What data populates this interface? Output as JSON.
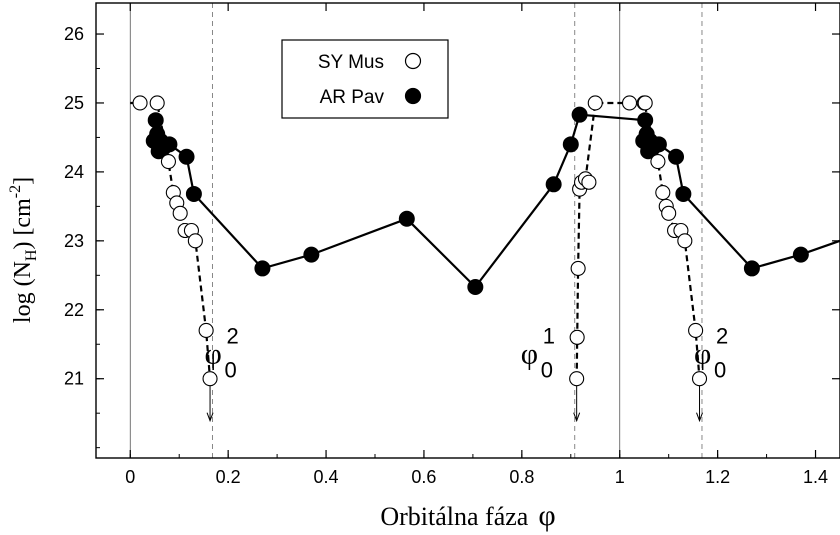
{
  "chart_data": {
    "type": "scatter",
    "xlabel": "Orbitálna fáza",
    "xlabel_symbol": "φ",
    "ylabel": "log (N",
    "ylabel_sub": "H",
    "ylabel_unit": ")   [cm",
    "ylabel_sup": "-2",
    "ylabel_close": "]",
    "xlim": [
      -0.07,
      1.45
    ],
    "ylim": [
      19.85,
      26.45
    ],
    "xticks": [
      0,
      0.2,
      0.4,
      0.6,
      0.8,
      1,
      1.2,
      1.4
    ],
    "xtick_labels": [
      "0",
      "0.2",
      "0.4",
      "0.6",
      "0.8",
      "1",
      "1.2",
      "1.4"
    ],
    "yticks": [
      21,
      22,
      23,
      24,
      25,
      26
    ],
    "ytick_labels": [
      "21",
      "22",
      "23",
      "24",
      "25",
      "26"
    ],
    "solid_vlines": [
      0,
      1
    ],
    "dashed_vlines": [
      0.168,
      0.908,
      1.168
    ],
    "legend_position": "top-center",
    "series": [
      {
        "name": "SY Mus",
        "marker": "open-circle",
        "line": "dashed",
        "x": [
          0.02,
          0.055,
          0.078,
          0.088,
          0.095,
          0.102,
          0.112,
          0.125,
          0.133,
          0.155,
          0.163
        ],
        "y": [
          25.0,
          25.0,
          24.15,
          23.7,
          23.55,
          23.4,
          23.15,
          23.15,
          23.0,
          21.7,
          21.0
        ],
        "extra_points": [
          {
            "x": [
              0.912,
              0.913,
              0.915,
              0.918,
              0.922,
              0.93,
              0.937,
              0.95
            ],
            "y": [
              21.0,
              21.6,
              22.6,
              23.75,
              23.85,
              23.9,
              23.85,
              25.0
            ]
          },
          {
            "x": [
              1.02,
              1.05,
              1.052,
              1.078,
              1.088,
              1.095,
              1.1,
              1.112,
              1.125,
              1.133,
              1.155,
              1.163
            ],
            "y": [
              25.0,
              25.0,
              25.0,
              24.15,
              23.7,
              23.5,
              23.4,
              23.15,
              23.15,
              23.0,
              21.7,
              21.0
            ]
          }
        ],
        "dashed_path_1_x": [
          0.0,
          0.055,
          0.078,
          0.088,
          0.095,
          0.102,
          0.112,
          0.125,
          0.133,
          0.155,
          0.163
        ],
        "dashed_path_1_y": [
          25.0,
          25.0,
          24.15,
          23.7,
          23.55,
          23.4,
          23.15,
          23.15,
          23.0,
          21.7,
          21.0
        ],
        "dashed_path_2_x": [
          0.912,
          0.913,
          0.915,
          0.918,
          0.93,
          0.95,
          1.05,
          1.078,
          1.088,
          1.095,
          1.1,
          1.112,
          1.125,
          1.133,
          1.155,
          1.163
        ],
        "dashed_path_2_y": [
          21.0,
          21.6,
          22.6,
          23.75,
          23.9,
          25.0,
          25.0,
          24.15,
          23.7,
          23.5,
          23.4,
          23.15,
          23.15,
          23.0,
          21.7,
          21.0
        ],
        "upper_limits": [
          {
            "x": 0.163,
            "y": 21.0
          },
          {
            "x": 0.912,
            "y": 21.0
          },
          {
            "x": 1.163,
            "y": 21.0
          }
        ]
      },
      {
        "name": "AR Pav",
        "marker": "filled-circle",
        "line": "solid",
        "x": [
          0.048,
          0.052,
          0.055,
          0.058,
          0.062,
          0.068,
          0.08,
          0.115,
          0.13,
          0.27,
          0.37,
          0.565,
          0.705,
          0.865,
          0.9,
          0.918,
          1.048,
          1.052,
          1.055,
          1.058,
          1.062,
          1.068,
          1.08,
          1.115,
          1.13,
          1.27,
          1.37
        ],
        "y": [
          24.45,
          24.75,
          24.55,
          24.3,
          24.45,
          24.35,
          24.4,
          24.22,
          23.68,
          22.6,
          22.8,
          23.32,
          22.33,
          23.82,
          24.4,
          24.83,
          24.45,
          24.75,
          24.55,
          24.3,
          24.45,
          24.35,
          24.4,
          24.22,
          23.68,
          22.6,
          22.8
        ],
        "solid_path_x": [
          0.048,
          0.055,
          0.062,
          0.068,
          0.08,
          0.115,
          0.13,
          0.27,
          0.37,
          0.565,
          0.705,
          0.865,
          0.9,
          0.918,
          1.052,
          1.055,
          1.062,
          1.068,
          1.08,
          1.115,
          1.13,
          1.27,
          1.37,
          1.45
        ],
        "solid_path_y": [
          24.45,
          24.55,
          24.45,
          24.35,
          24.4,
          24.22,
          23.68,
          22.6,
          22.8,
          23.32,
          22.33,
          23.82,
          24.4,
          24.83,
          24.75,
          24.55,
          24.45,
          24.35,
          24.4,
          24.22,
          23.68,
          22.6,
          22.8,
          23.0
        ]
      }
    ],
    "annotations": [
      {
        "symbol": "φ",
        "sup": "2",
        "sub": "0",
        "x": 0.168,
        "y": 21.25,
        "anchor": "left"
      },
      {
        "symbol": "φ",
        "sup": "1",
        "sub": "0",
        "x": 0.908,
        "y": 21.25,
        "anchor": "right"
      },
      {
        "symbol": "φ",
        "sup": "2",
        "sub": "0",
        "x": 1.168,
        "y": 21.25,
        "anchor": "left"
      }
    ]
  }
}
